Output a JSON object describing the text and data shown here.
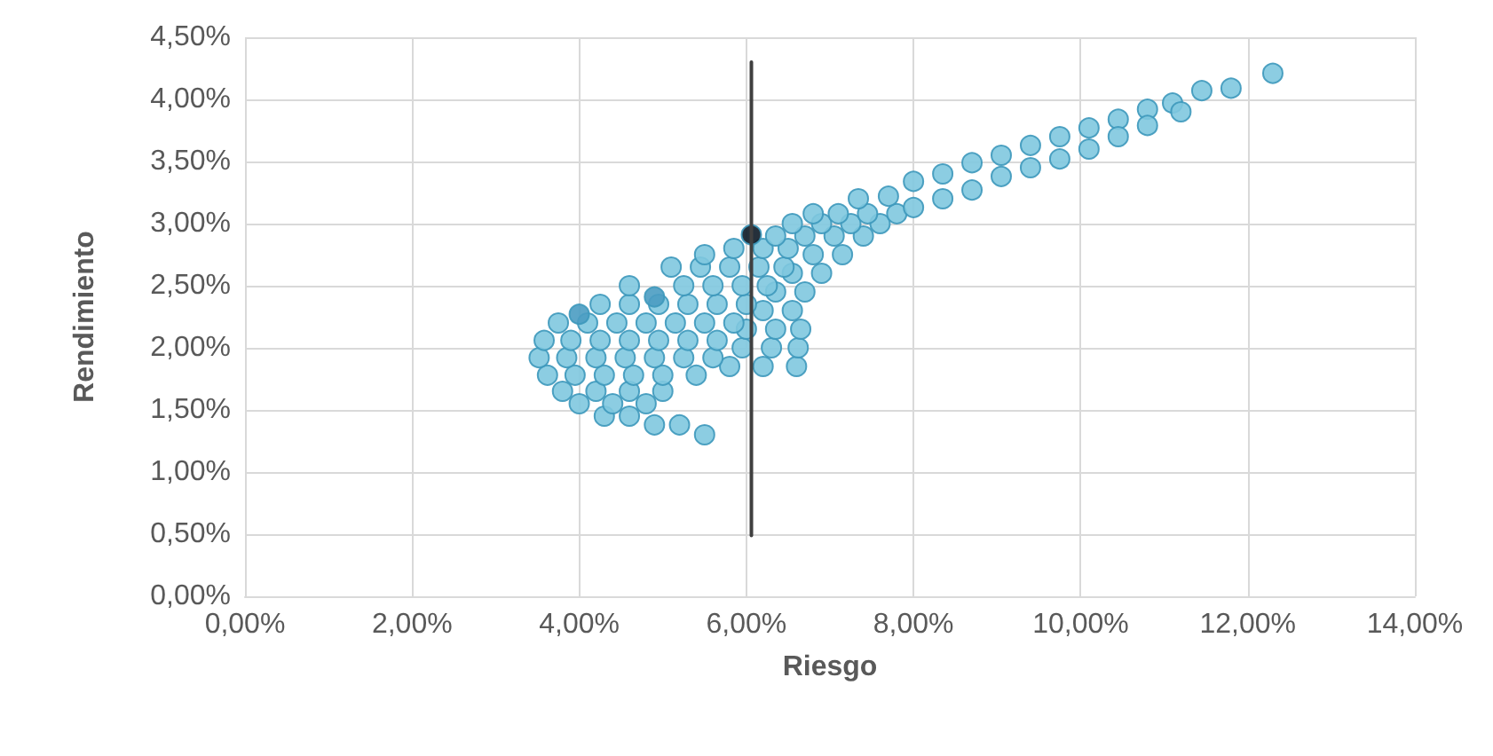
{
  "chart_data": {
    "type": "scatter",
    "xlabel": "Riesgo",
    "ylabel": "Rendimiento",
    "grid": true,
    "marker": "circle",
    "xlim": [
      0,
      14
    ],
    "ylim": [
      0,
      4.5
    ],
    "xticks": [
      {
        "value": 0,
        "label": "0,00%"
      },
      {
        "value": 2,
        "label": "2,00%"
      },
      {
        "value": 4,
        "label": "4,00%"
      },
      {
        "value": 6,
        "label": "6,00%"
      },
      {
        "value": 8,
        "label": "8,00%"
      },
      {
        "value": 10,
        "label": "10,00%"
      },
      {
        "value": 12,
        "label": "12,00%"
      },
      {
        "value": 14,
        "label": "14,00%"
      }
    ],
    "yticks": [
      {
        "value": 0,
        "label": "0,00%"
      },
      {
        "value": 0.5,
        "label": "0,50%"
      },
      {
        "value": 1,
        "label": "1,00%"
      },
      {
        "value": 1.5,
        "label": "1,50%"
      },
      {
        "value": 2,
        "label": "2,00%"
      },
      {
        "value": 2.5,
        "label": "2,50%"
      },
      {
        "value": 3,
        "label": "3,00%"
      },
      {
        "value": 3.5,
        "label": "3,50%"
      },
      {
        "value": 4,
        "label": "4,00%"
      },
      {
        "value": 4.5,
        "label": "4,50%"
      }
    ],
    "series": [
      {
        "type": "line",
        "marker": "none",
        "line_style": "solid",
        "color": "#404040",
        "x": [
          6.06,
          6.06
        ],
        "values": [
          0.49,
          4.3
        ]
      },
      {
        "color": "#80c8df",
        "x": [
          5.5,
          4.9,
          5.2,
          4.3,
          4.6,
          4.0,
          4.4,
          4.8,
          3.8,
          4.2,
          4.6,
          5.0,
          3.62,
          3.95,
          4.3,
          4.65,
          5.0,
          5.4,
          5.8,
          6.2,
          6.6,
          3.52,
          3.85,
          4.2,
          4.55,
          4.9,
          5.25,
          5.6,
          5.95,
          6.3,
          6.62,
          3.58,
          3.9,
          4.25,
          4.6,
          4.95,
          5.3,
          5.65,
          6.0,
          6.35,
          6.65,
          3.75,
          4.1,
          4.45,
          4.8,
          5.15,
          5.5,
          5.85,
          6.2,
          6.55,
          4.25,
          4.6,
          4.95,
          5.3,
          5.65,
          6.0,
          6.35,
          6.7,
          4.6,
          5.25,
          5.6,
          5.95,
          6.25,
          6.55,
          6.9,
          5.1,
          5.45,
          5.8,
          6.15,
          6.45,
          5.5,
          6.8,
          7.15,
          5.85,
          6.2,
          6.5,
          6.35,
          6.7,
          7.05,
          7.4,
          6.55,
          6.9,
          7.25,
          7.6,
          6.8,
          7.1,
          7.45,
          7.8,
          7.34,
          7.7,
          8.0,
          8.35,
          8.7,
          9.05,
          9.4,
          9.75,
          10.1,
          10.45,
          10.8,
          11.1,
          11.45,
          11.8,
          12.3,
          8.0,
          8.35,
          8.7,
          9.05,
          9.4,
          9.75,
          10.1,
          10.45,
          10.8,
          11.2
        ],
        "values": [
          1.3,
          1.38,
          1.38,
          1.45,
          1.45,
          1.55,
          1.55,
          1.55,
          1.65,
          1.65,
          1.65,
          1.65,
          1.78,
          1.78,
          1.78,
          1.78,
          1.78,
          1.78,
          1.85,
          1.85,
          1.85,
          1.92,
          1.92,
          1.92,
          1.92,
          1.92,
          1.92,
          1.92,
          2.0,
          2.0,
          2.0,
          2.06,
          2.06,
          2.06,
          2.06,
          2.06,
          2.06,
          2.06,
          2.15,
          2.15,
          2.15,
          2.2,
          2.2,
          2.2,
          2.2,
          2.2,
          2.2,
          2.2,
          2.3,
          2.3,
          2.35,
          2.35,
          2.35,
          2.35,
          2.35,
          2.35,
          2.45,
          2.45,
          2.5,
          2.5,
          2.5,
          2.5,
          2.5,
          2.6,
          2.6,
          2.65,
          2.65,
          2.65,
          2.65,
          2.65,
          2.75,
          2.75,
          2.75,
          2.8,
          2.8,
          2.8,
          2.9,
          2.9,
          2.9,
          2.9,
          3.0,
          3.0,
          3.0,
          3.0,
          3.08,
          3.08,
          3.08,
          3.08,
          3.2,
          3.22,
          3.34,
          3.4,
          3.49,
          3.55,
          3.63,
          3.7,
          3.77,
          3.84,
          3.92,
          3.97,
          4.07,
          4.09,
          4.21,
          3.13,
          3.2,
          3.27,
          3.38,
          3.45,
          3.52,
          3.6,
          3.7,
          3.79,
          3.9
        ]
      },
      {
        "color": "#4a9cc2",
        "x": [
          4.0,
          4.9
        ],
        "values": [
          2.27,
          2.41
        ]
      },
      {
        "color": "#0d1a26",
        "x": [
          6.06
        ],
        "values": [
          2.91
        ]
      }
    ]
  }
}
